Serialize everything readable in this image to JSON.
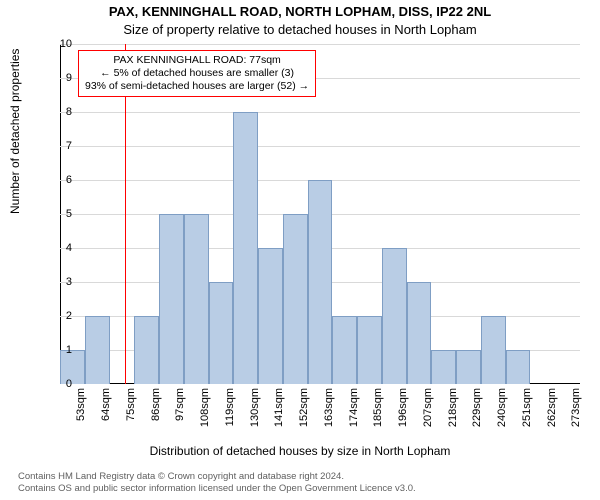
{
  "chart": {
    "type": "histogram",
    "title_line1": "PAX, KENNINGHALL ROAD, NORTH LOPHAM, DISS, IP22 2NL",
    "title_line2": "Size of property relative to detached houses in North Lopham",
    "ylabel": "Number of detached properties",
    "xlabel": "Distribution of detached houses by size in North Lopham",
    "title_fontsize": 13,
    "label_fontsize": 12,
    "tick_fontsize": 11,
    "background_color": "#ffffff",
    "grid_color": "#d9d9d9",
    "bar_fill": "#b9cde5",
    "bar_stroke": "#7f9ec4",
    "marker_color": "#ff0000",
    "annotation_border": "#ff0000",
    "bin_width_sqm": 11,
    "first_bin_start": 48,
    "ylim": [
      0,
      10
    ],
    "ytick_step": 1,
    "xtick_start": 53,
    "xtick_step": 11,
    "xtick_count": 21,
    "xtick_suffix": "sqm",
    "bar_heights": [
      1,
      2,
      0,
      2,
      5,
      5,
      3,
      8,
      4,
      5,
      6,
      2,
      2,
      4,
      3,
      1,
      1,
      2,
      1,
      0,
      0
    ],
    "marker_value_sqm": 77,
    "annotation": {
      "line1": "PAX KENNINGHALL ROAD: 77sqm",
      "line2": "← 5% of detached houses are smaller (3)",
      "line3": "93% of semi-detached houses are larger (52) →"
    },
    "footer_line1": "Contains HM Land Registry data © Crown copyright and database right 2024.",
    "footer_line2": "Contains OS and public sector information licensed under the Open Government Licence v3.0."
  }
}
